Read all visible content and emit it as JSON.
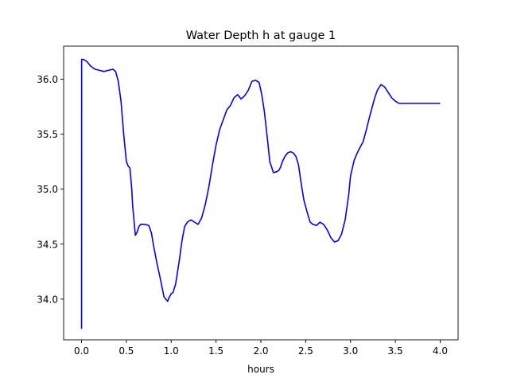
{
  "chart_data": {
    "type": "line",
    "title": "Water Depth h at gauge 1",
    "xlabel": "hours",
    "ylabel": "",
    "xlim": [
      -0.2,
      4.2
    ],
    "ylim": [
      33.63,
      36.3
    ],
    "xticks": [
      "0.0",
      "0.5",
      "1.0",
      "1.5",
      "2.0",
      "2.5",
      "3.0",
      "3.5",
      "4.0"
    ],
    "yticks": [
      "34.0",
      "34.5",
      "35.0",
      "35.5",
      "36.0"
    ],
    "grid": false,
    "legend": "none",
    "series": [
      {
        "color": "#0000ff",
        "x": [
          0.0,
          0.001,
          0.02,
          0.06,
          0.1,
          0.15,
          0.2,
          0.25,
          0.3,
          0.35,
          0.38,
          0.41,
          0.44,
          0.47,
          0.5,
          0.52,
          0.54,
          0.56,
          0.57,
          0.6,
          0.62,
          0.64,
          0.66,
          0.7,
          0.75,
          0.78,
          0.8,
          0.84,
          0.88,
          0.92,
          0.96,
          0.98,
          1.0,
          1.02,
          1.05,
          1.09,
          1.12,
          1.15,
          1.18,
          1.22,
          1.26,
          1.3,
          1.34,
          1.38,
          1.42,
          1.46,
          1.5,
          1.54,
          1.58,
          1.62,
          1.66,
          1.7,
          1.74,
          1.78,
          1.82,
          1.86,
          1.9,
          1.94,
          1.98,
          2.01,
          2.04,
          2.07,
          2.1,
          2.14,
          2.18,
          2.2,
          2.22,
          2.24,
          2.27,
          2.3,
          2.33,
          2.36,
          2.39,
          2.42,
          2.45,
          2.48,
          2.52,
          2.55,
          2.58,
          2.62,
          2.66,
          2.7,
          2.74,
          2.78,
          2.82,
          2.86,
          2.9,
          2.94,
          2.98,
          3.0,
          3.04,
          3.07,
          3.1,
          3.14,
          3.18,
          3.21,
          3.24,
          3.27,
          3.3,
          3.34,
          3.38,
          3.42,
          3.46,
          3.5,
          3.54,
          3.58,
          3.62,
          3.66,
          3.7,
          3.74,
          3.78,
          3.82,
          3.86,
          3.9,
          3.94,
          3.97,
          4.0
        ],
        "y": [
          33.73,
          36.18,
          36.18,
          36.16,
          36.12,
          36.09,
          36.08,
          36.07,
          36.08,
          36.09,
          36.07,
          35.98,
          35.8,
          35.5,
          35.25,
          35.21,
          35.19,
          35.0,
          34.85,
          34.58,
          34.61,
          34.66,
          34.68,
          34.68,
          34.67,
          34.6,
          34.5,
          34.33,
          34.18,
          34.02,
          33.98,
          34.02,
          34.05,
          34.06,
          34.14,
          34.35,
          34.53,
          34.66,
          34.7,
          34.72,
          34.7,
          34.68,
          34.74,
          34.86,
          35.02,
          35.22,
          35.4,
          35.54,
          35.63,
          35.72,
          35.76,
          35.83,
          35.86,
          35.82,
          35.85,
          35.9,
          35.98,
          35.99,
          35.97,
          35.86,
          35.7,
          35.48,
          35.25,
          35.15,
          35.16,
          35.17,
          35.2,
          35.25,
          35.3,
          35.33,
          35.34,
          35.33,
          35.3,
          35.22,
          35.05,
          34.9,
          34.78,
          34.7,
          34.68,
          34.67,
          34.7,
          34.68,
          34.63,
          34.56,
          34.52,
          34.53,
          34.59,
          34.72,
          34.95,
          35.12,
          35.26,
          35.32,
          35.37,
          35.43,
          35.55,
          35.65,
          35.74,
          35.83,
          35.9,
          35.95,
          35.93,
          35.88,
          35.83,
          35.8,
          35.78,
          35.78,
          35.78,
          35.78,
          35.78,
          35.78,
          35.78,
          35.78,
          35.78,
          35.78,
          35.78,
          35.78,
          35.78
        ]
      }
    ]
  }
}
